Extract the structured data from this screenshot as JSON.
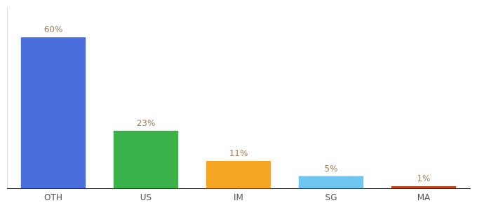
{
  "chart_data": {
    "type": "bar",
    "categories": [
      "OTH",
      "US",
      "IM",
      "SG",
      "MA"
    ],
    "values": [
      60,
      23,
      11,
      5,
      1
    ],
    "value_labels": [
      "60%",
      "23%",
      "11%",
      "5%",
      "1%"
    ],
    "colors": [
      "#4a6fdc",
      "#3bb34a",
      "#f5a623",
      "#6ec6f0",
      "#c0441a"
    ],
    "ylim": [
      0,
      72
    ],
    "data_labels": true,
    "tick_labels": "x",
    "grid": false
  }
}
